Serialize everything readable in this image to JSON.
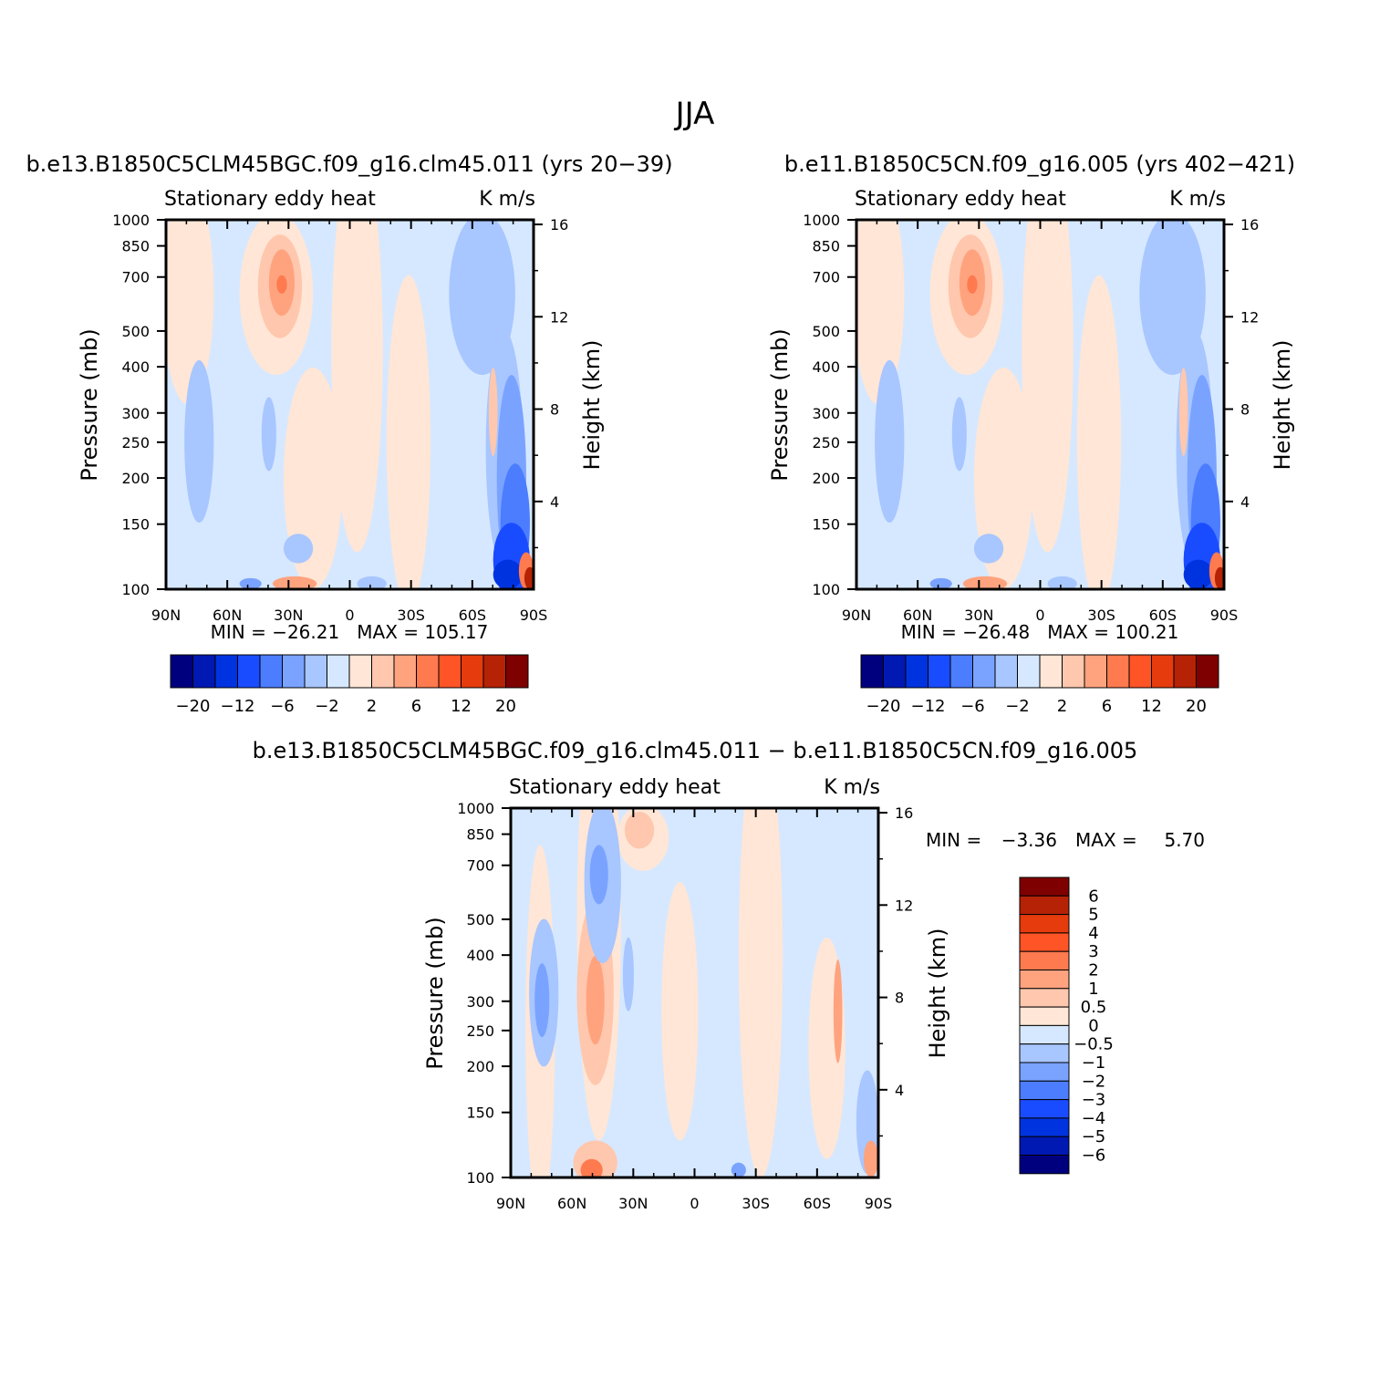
{
  "figure": {
    "title": "JJA"
  },
  "colors": {
    "blue_scale": [
      "#00007f",
      "#0019b2",
      "#0033e0",
      "#1a4cff",
      "#4c7dff",
      "#7aa3ff",
      "#a8c6ff",
      "#d6e8ff"
    ],
    "red_scale": [
      "#ffe6d6",
      "#ffc7ad",
      "#ffa37f",
      "#ff7a4f",
      "#ff5426",
      "#e63b0d",
      "#b52205",
      "#7f0000"
    ],
    "frame": "#000000",
    "background": "#ffffff"
  },
  "chart_data": [
    {
      "type": "heatmap",
      "panel": "top-left",
      "title": "b.e13.B1850C5CLM45BGC.f09_g16.clm45.011 (yrs 20−39)",
      "subtitle_left": "Stationary eddy heat",
      "subtitle_right": "K m/s",
      "xlabel": "",
      "ylabel": "Pressure (mb)",
      "ylabel_right": "Height (km)",
      "x_ticks": [
        "90N",
        "60N",
        "30N",
        "0",
        "30S",
        "60S",
        "90S"
      ],
      "y_ticks": [
        "100",
        "150",
        "200",
        "250",
        "300",
        "400",
        "500",
        "700",
        "850",
        "1000"
      ],
      "y_ticks_right": [
        "16",
        "12",
        "8",
        "4"
      ],
      "ylim": [
        1000,
        100
      ],
      "xlim": [
        90,
        -90
      ],
      "y_scale": "log",
      "stats": "MIN = −26.21   MAX = 105.17",
      "min": -26.21,
      "max": 105.17,
      "colorbar_labels": [
        "−20",
        "−12",
        "−6",
        "−2",
        "2",
        "6",
        "12",
        "20"
      ],
      "colorbar_levels": [
        -20,
        -16,
        -12,
        -8,
        -6,
        -4,
        -2,
        0,
        2,
        4,
        6,
        8,
        12,
        16,
        20
      ]
    },
    {
      "type": "heatmap",
      "panel": "top-right",
      "title": "b.e11.B1850C5CN.f09_g16.005 (yrs 402−421)",
      "subtitle_left": "Stationary eddy heat",
      "subtitle_right": "K m/s",
      "xlabel": "",
      "ylabel": "Pressure (mb)",
      "ylabel_right": "Height (km)",
      "x_ticks": [
        "90N",
        "60N",
        "30N",
        "0",
        "30S",
        "60S",
        "90S"
      ],
      "y_ticks": [
        "100",
        "150",
        "200",
        "250",
        "300",
        "400",
        "500",
        "700",
        "850",
        "1000"
      ],
      "y_ticks_right": [
        "16",
        "12",
        "8",
        "4"
      ],
      "ylim": [
        1000,
        100
      ],
      "xlim": [
        90,
        -90
      ],
      "y_scale": "log",
      "stats": "MIN = −26.48   MAX = 100.21",
      "min": -26.48,
      "max": 100.21,
      "colorbar_labels": [
        "−20",
        "−12",
        "−6",
        "−2",
        "2",
        "6",
        "12",
        "20"
      ],
      "colorbar_levels": [
        -20,
        -16,
        -12,
        -8,
        -6,
        -4,
        -2,
        0,
        2,
        4,
        6,
        8,
        12,
        16,
        20
      ]
    },
    {
      "type": "heatmap",
      "panel": "bottom",
      "title": "b.e13.B1850C5CLM45BGC.f09_g16.clm45.011 − b.e11.B1850C5CN.f09_g16.005",
      "subtitle_left": "Stationary eddy heat",
      "subtitle_right": "K m/s",
      "xlabel": "",
      "ylabel": "Pressure (mb)",
      "ylabel_right": "Height (km)",
      "x_ticks": [
        "90N",
        "60N",
        "30N",
        "0",
        "30S",
        "60S",
        "90S"
      ],
      "y_ticks": [
        "100",
        "150",
        "200",
        "250",
        "300",
        "400",
        "500",
        "700",
        "850",
        "1000"
      ],
      "y_ticks_right": [
        "16",
        "12",
        "8",
        "4"
      ],
      "ylim": [
        1000,
        100
      ],
      "xlim": [
        90,
        -90
      ],
      "y_scale": "log",
      "min_label": "MIN =",
      "min_value": "−3.36",
      "max_label": "MAX =",
      "max_value": "5.70",
      "min": -3.36,
      "max": 5.7,
      "colorbar_labels": [
        "6",
        "5",
        "4",
        "3",
        "2",
        "1",
        "0.5",
        "0",
        "−0.5",
        "−1",
        "−2",
        "−3",
        "−4",
        "−5",
        "−6"
      ],
      "colorbar_levels": [
        -6,
        -5,
        -4,
        -3,
        -2,
        -1,
        -0.5,
        0,
        0.5,
        1,
        2,
        3,
        4,
        5,
        6
      ]
    }
  ]
}
